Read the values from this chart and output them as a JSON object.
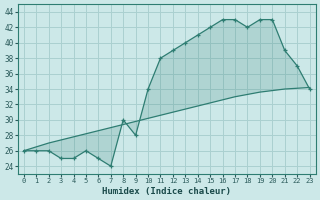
{
  "x": [
    0,
    1,
    2,
    3,
    4,
    5,
    6,
    7,
    8,
    9,
    10,
    11,
    12,
    13,
    14,
    15,
    16,
    17,
    18,
    19,
    20,
    21,
    22,
    23
  ],
  "y_main": [
    26,
    26,
    26,
    25,
    25,
    26,
    25,
    24,
    30,
    28,
    34,
    38,
    39,
    40,
    41,
    42,
    43,
    43,
    42,
    43,
    43,
    39,
    37,
    34
  ],
  "y_line2": [
    26.0,
    26.5,
    27.0,
    27.4,
    27.8,
    28.2,
    28.6,
    29.0,
    29.4,
    29.8,
    30.2,
    30.6,
    31.0,
    31.4,
    31.8,
    32.2,
    32.6,
    33.0,
    33.3,
    33.6,
    33.8,
    34.0,
    34.1,
    34.2
  ],
  "line_color": "#2e7d72",
  "bg_color": "#cce8e8",
  "grid_color": "#aad0d0",
  "xlabel": "Humidex (Indice chaleur)",
  "xlim": [
    -0.5,
    23.5
  ],
  "ylim": [
    23,
    45
  ],
  "yticks": [
    24,
    26,
    28,
    30,
    32,
    34,
    36,
    38,
    40,
    42,
    44
  ],
  "xtick_labels": [
    "0",
    "1",
    "2",
    "3",
    "4",
    "5",
    "6",
    "7",
    "8",
    "9",
    "10",
    "11",
    "12",
    "13",
    "14",
    "15",
    "16",
    "17",
    "18",
    "19",
    "20",
    "21",
    "22",
    "23"
  ]
}
